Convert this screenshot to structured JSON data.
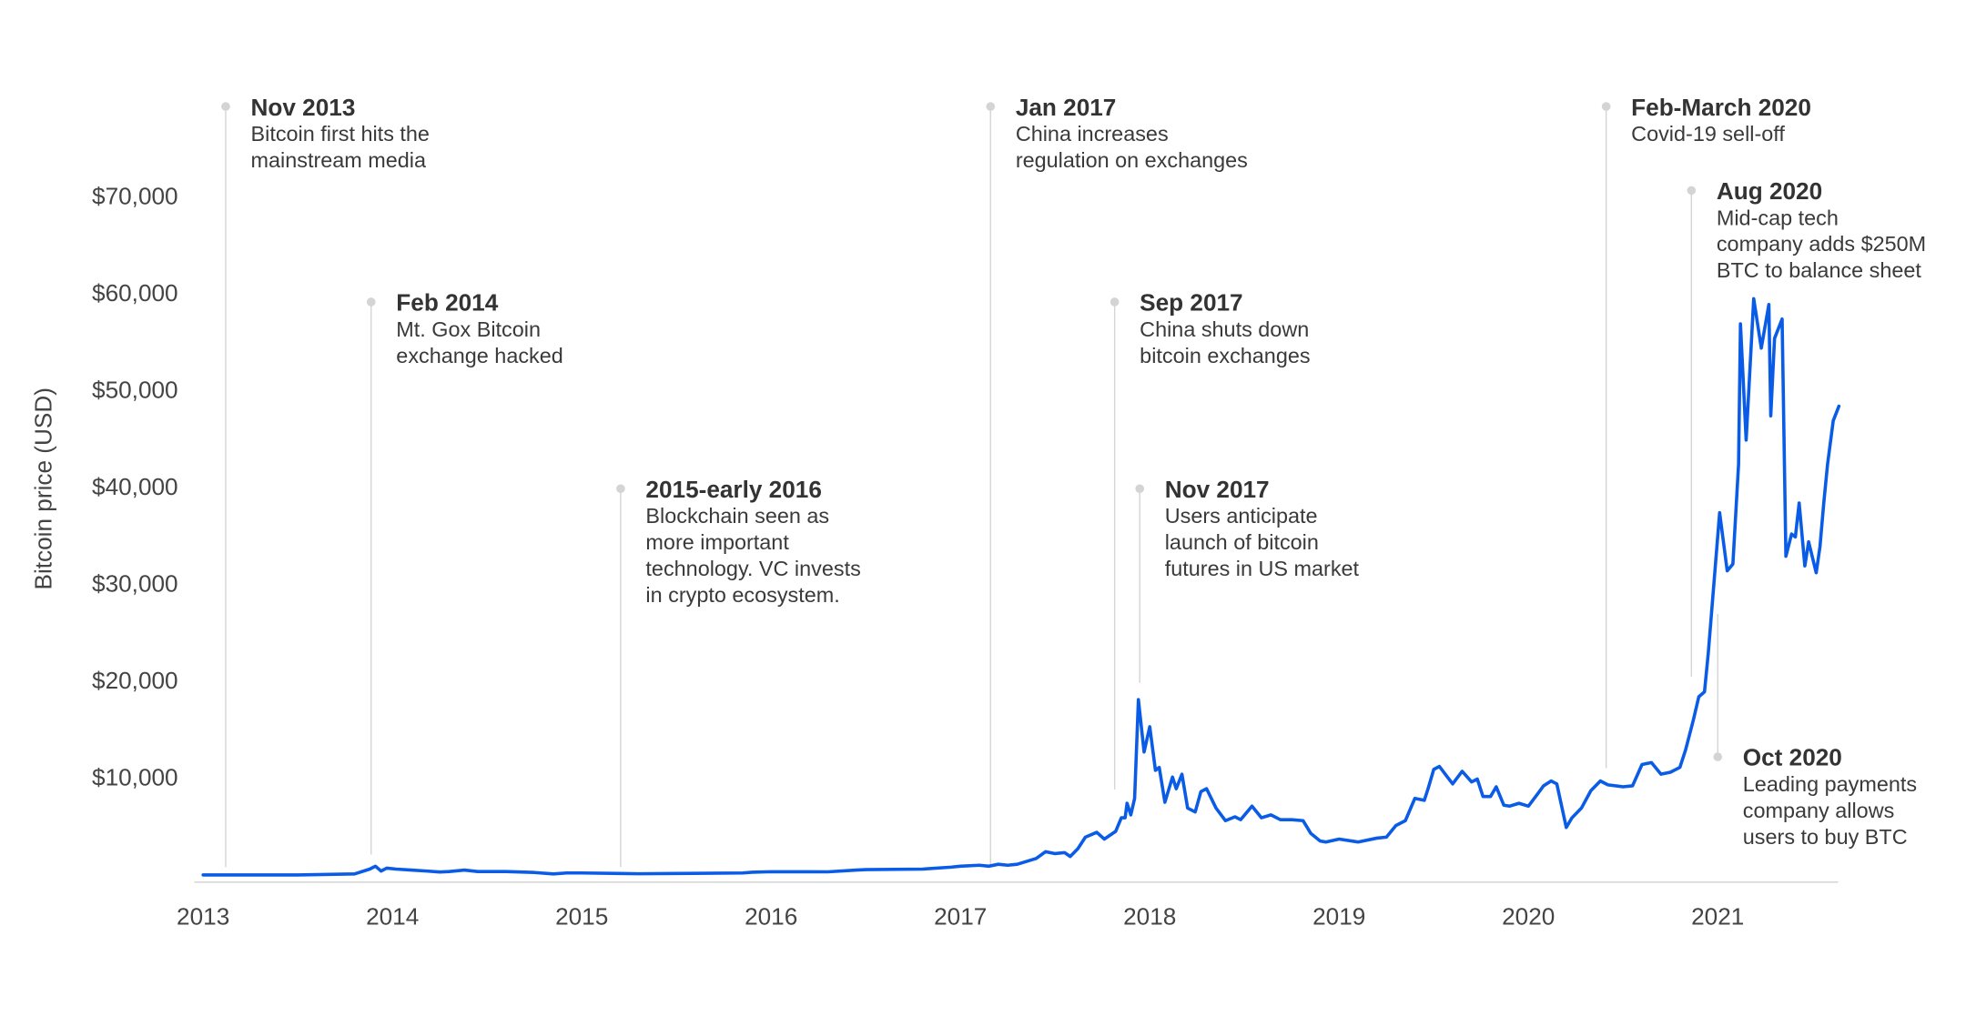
{
  "chart_data": {
    "type": "line",
    "y_label": "Bitcoin price (USD)",
    "color": "#0a5ce6",
    "xlim": [
      2013,
      2021.65
    ],
    "xticks": [
      2013,
      2014,
      2015,
      2016,
      2017,
      2018,
      2019,
      2020,
      2021
    ],
    "ylim": [
      0,
      70000
    ],
    "yticks": [
      {
        "value": 10000,
        "label": "$10,000"
      },
      {
        "value": 20000,
        "label": "$20,000"
      },
      {
        "value": 30000,
        "label": "$30,000"
      },
      {
        "value": 40000,
        "label": "$40,000"
      },
      {
        "value": 50000,
        "label": "$50,000"
      },
      {
        "value": 60000,
        "label": "$60,000"
      },
      {
        "value": 70000,
        "label": "$70,000"
      }
    ],
    "x": [
      2013.0,
      2013.5,
      2013.8,
      2013.88,
      2013.91,
      2013.94,
      2013.97,
      2014.02,
      2014.1,
      2014.18,
      2014.25,
      2014.3,
      2014.38,
      2014.45,
      2014.6,
      2014.75,
      2014.85,
      2014.92,
      2015.0,
      2015.2,
      2015.3,
      2015.5,
      2015.85,
      2015.9,
      2016.0,
      2016.3,
      2016.45,
      2016.5,
      2016.8,
      2016.95,
      2017.0,
      2017.1,
      2017.15,
      2017.2,
      2017.25,
      2017.3,
      2017.4,
      2017.45,
      2017.5,
      2017.55,
      2017.58,
      2017.62,
      2017.66,
      2017.72,
      2017.76,
      2017.82,
      2017.85,
      2017.87,
      2017.88,
      2017.9,
      2017.92,
      2017.94,
      2017.97,
      2018.0,
      2018.03,
      2018.05,
      2018.08,
      2018.12,
      2018.14,
      2018.17,
      2018.2,
      2018.24,
      2018.27,
      2018.3,
      2018.35,
      2018.4,
      2018.45,
      2018.48,
      2018.54,
      2018.59,
      2018.64,
      2018.69,
      2018.75,
      2018.81,
      2018.85,
      2018.9,
      2018.93,
      2019.0,
      2019.1,
      2019.2,
      2019.25,
      2019.3,
      2019.35,
      2019.4,
      2019.45,
      2019.47,
      2019.5,
      2019.53,
      2019.58,
      2019.6,
      2019.65,
      2019.7,
      2019.73,
      2019.76,
      2019.8,
      2019.83,
      2019.87,
      2019.9,
      2019.95,
      2020.0,
      2020.05,
      2020.08,
      2020.12,
      2020.15,
      2020.2,
      2020.23,
      2020.28,
      2020.33,
      2020.38,
      2020.42,
      2020.5,
      2020.55,
      2020.6,
      2020.65,
      2020.7,
      2020.75,
      2020.8,
      2020.83,
      2020.87,
      2020.9,
      2020.93,
      2020.95,
      2021.01,
      2021.05,
      2021.08,
      2021.11,
      2021.12,
      2021.15,
      2021.19,
      2021.23,
      2021.27,
      2021.28,
      2021.3,
      2021.34,
      2021.36,
      2021.39,
      2021.41,
      2021.43,
      2021.46,
      2021.48,
      2021.52,
      2021.54,
      2021.56,
      2021.58,
      2021.61,
      2021.64
    ],
    "values": [
      100,
      100,
      200,
      700,
      1000,
      500,
      800,
      700,
      600,
      500,
      400,
      450,
      600,
      450,
      450,
      350,
      200,
      300,
      300,
      250,
      220,
      250,
      300,
      380,
      430,
      420,
      600,
      650,
      700,
      900,
      1000,
      1100,
      1000,
      1200,
      1100,
      1200,
      1800,
      2500,
      2300,
      2400,
      2000,
      2800,
      4000,
      4500,
      3800,
      4600,
      6000,
      6000,
      7500,
      6300,
      8000,
      18200,
      12800,
      15400,
      10900,
      11200,
      7600,
      10200,
      9000,
      10500,
      7000,
      6600,
      8700,
      9000,
      7000,
      5700,
      6100,
      5800,
      7200,
      6000,
      6300,
      5800,
      5800,
      5700,
      4400,
      3600,
      3500,
      3800,
      3500,
      3900,
      4000,
      5200,
      5700,
      8000,
      7800,
      9000,
      11000,
      11300,
      10000,
      9500,
      10800,
      9700,
      10000,
      8200,
      8200,
      9200,
      7300,
      7200,
      7500,
      7200,
      8500,
      9300,
      9800,
      9500,
      5000,
      6000,
      7000,
      8800,
      9800,
      9400,
      9200,
      9300,
      11500,
      11700,
      10500,
      10700,
      11200,
      13000,
      16000,
      18500,
      19000,
      23000,
      37500,
      31500,
      32200,
      42500,
      57000,
      45000,
      59600,
      54500,
      59000,
      47500,
      55500,
      57500,
      33000,
      35300,
      35000,
      38500,
      32000,
      34500,
      31300,
      34000,
      38500,
      42500,
      47000,
      48500
    ],
    "annotations": [
      {
        "title": "Nov 2013",
        "text": [
          "Bitcoin first hits the",
          "mainstream media"
        ]
      },
      {
        "title": "Feb 2014",
        "text": [
          "Mt. Gox Bitcoin",
          "exchange hacked"
        ]
      },
      {
        "title": "2015-early 2016",
        "text": [
          "Blockchain seen as",
          "more important",
          "technology. VC invests",
          "in crypto ecosystem."
        ]
      },
      {
        "title": "Jan 2017",
        "text": [
          "China increases",
          "regulation on exchanges"
        ]
      },
      {
        "title": "Sep 2017",
        "text": [
          "China shuts down",
          "bitcoin exchanges"
        ]
      },
      {
        "title": "Nov 2017",
        "text": [
          "Users anticipate",
          "launch of bitcoin",
          "futures in US market"
        ]
      },
      {
        "title": "Feb-March 2020",
        "text": [
          "Covid-19 sell-off"
        ]
      },
      {
        "title": "Aug 2020",
        "text": [
          "Mid-cap tech",
          "company adds $250M",
          "BTC to balance sheet"
        ]
      },
      {
        "title": "Oct 2020",
        "text": [
          "Leading payments",
          "company allows",
          "users to buy BTC"
        ]
      }
    ]
  }
}
